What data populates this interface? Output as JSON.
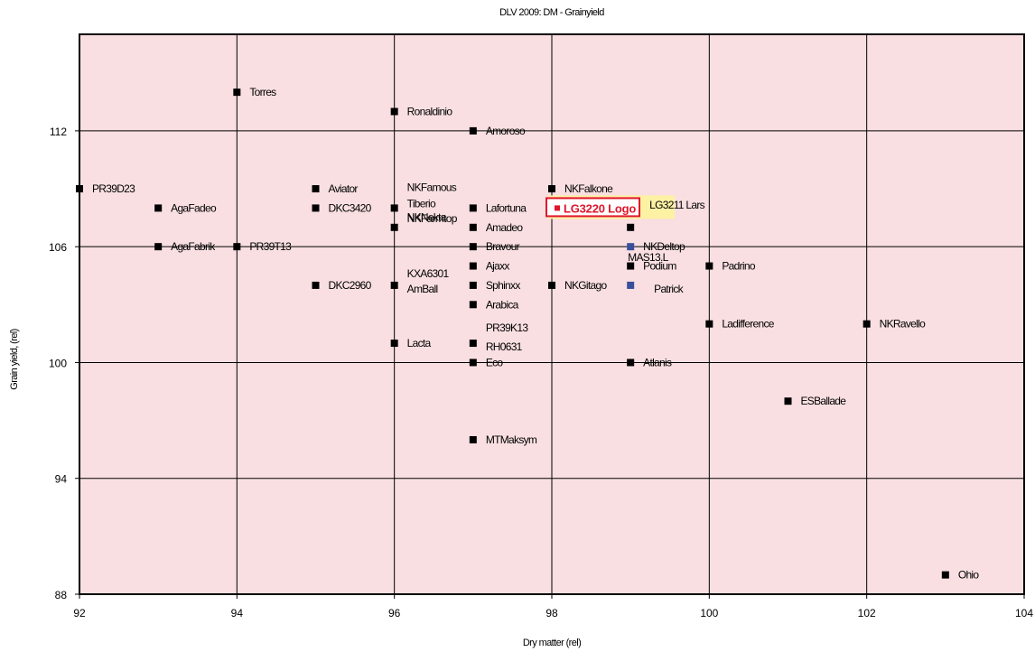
{
  "chart_data": {
    "type": "scatter",
    "title": "DLV 2009: DM - Grainyield",
    "xlabel": "Dry matter (rel)",
    "ylabel": "Grain yield, (rel)",
    "xlim": [
      92,
      104
    ],
    "ylim": [
      88,
      117
    ],
    "x_ticks": [
      92,
      94,
      96,
      98,
      100,
      102,
      104
    ],
    "y_ticks": [
      88,
      94,
      100,
      106,
      112
    ],
    "grid": true,
    "plot_background": "#f9dfe1",
    "marker_color": "#000000",
    "highlight_marker_color": "#3a4f9c",
    "highlight_text_color": "#e0162b",
    "highlight_box_fill": "#fdf1a4",
    "points": [
      {
        "label": "PR39D23",
        "x": 92.0,
        "y": 109.0
      },
      {
        "label": "AgaFadeo",
        "x": 93.0,
        "y": 108.0
      },
      {
        "label": "AgaFabrik",
        "x": 93.0,
        "y": 106.0
      },
      {
        "label": "Torres",
        "x": 94.0,
        "y": 114.0
      },
      {
        "label": "PR39T13",
        "x": 94.0,
        "y": 106.0
      },
      {
        "label": "Aviator",
        "x": 95.0,
        "y": 109.0
      },
      {
        "label": "DKC3420",
        "x": 95.0,
        "y": 108.0
      },
      {
        "label": "DKC2960",
        "x": 95.0,
        "y": 104.0
      },
      {
        "label": "Ronaldinio",
        "x": 96.0,
        "y": 113.0
      },
      {
        "label": "NKFamous",
        "x": 96.0,
        "y": 108.0
      },
      {
        "label": "Tiberio",
        "x": 96.0,
        "y": 108.0
      },
      {
        "label": "NKNekta",
        "x": 96.0,
        "y": 108.0
      },
      {
        "label": "NKFarmtop",
        "x": 96.0,
        "y": 107.0
      },
      {
        "label": "KXA6301",
        "x": 96.0,
        "y": 104.0
      },
      {
        "label": "AmBall",
        "x": 96.0,
        "y": 104.0
      },
      {
        "label": "Lacta",
        "x": 96.0,
        "y": 101.0
      },
      {
        "label": "Amoroso",
        "x": 97.0,
        "y": 112.0
      },
      {
        "label": "Lafortuna",
        "x": 97.0,
        "y": 108.0
      },
      {
        "label": "Amadeo",
        "x": 97.0,
        "y": 107.0
      },
      {
        "label": "Bravour",
        "x": 97.0,
        "y": 106.0
      },
      {
        "label": "Ajaxx",
        "x": 97.0,
        "y": 105.0
      },
      {
        "label": "Sphinxx",
        "x": 97.0,
        "y": 104.0
      },
      {
        "label": "Arabica",
        "x": 97.0,
        "y": 103.0
      },
      {
        "label": "PR39K13",
        "x": 97.0,
        "y": 101.0
      },
      {
        "label": "RH0631",
        "x": 97.0,
        "y": 101.0
      },
      {
        "label": "Eco",
        "x": 97.0,
        "y": 100.0
      },
      {
        "label": "MTMaksym",
        "x": 97.0,
        "y": 96.0
      },
      {
        "label": "NKFalkone",
        "x": 98.0,
        "y": 109.0
      },
      {
        "label": "LG3220 Logo",
        "x": 98.0,
        "y": 108.0,
        "highlight": true
      },
      {
        "label": "NKGitago",
        "x": 98.0,
        "y": 104.0
      },
      {
        "label": "LG3211 Lars",
        "x": 99.0,
        "y": 107.0
      },
      {
        "label": "NKDeltop",
        "x": 99.0,
        "y": 106.0,
        "marker": "blue"
      },
      {
        "label": "MAS13.L",
        "x": 99.0,
        "y": 106.0
      },
      {
        "label": "Podium",
        "x": 99.0,
        "y": 105.0
      },
      {
        "label": "Patrick",
        "x": 99.0,
        "y": 104.0,
        "marker": "blue"
      },
      {
        "label": "Atlanis",
        "x": 99.0,
        "y": 100.0
      },
      {
        "label": "Padrino",
        "x": 100.0,
        "y": 105.0
      },
      {
        "label": "Ladifference",
        "x": 100.0,
        "y": 102.0
      },
      {
        "label": "ESBallade",
        "x": 101.0,
        "y": 98.0
      },
      {
        "label": "NKRavello",
        "x": 102.0,
        "y": 102.0
      },
      {
        "label": "Ohio",
        "x": 103.0,
        "y": 89.0
      }
    ]
  }
}
